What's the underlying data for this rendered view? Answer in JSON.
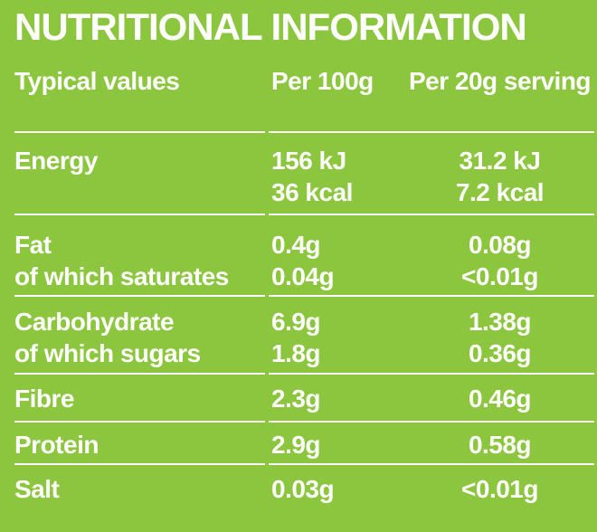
{
  "colors": {
    "background": "#8CC63F",
    "text": "#FFFFFF",
    "divider": "#FFFFFF"
  },
  "title": "NUTRITIONAL INFORMATION",
  "table": {
    "headers": {
      "col1": "Typical values",
      "col2": "Per 100g",
      "col3": "Per 20g serving"
    },
    "rows": [
      {
        "label": "Energy",
        "per100": [
          "156 kJ",
          "36 kcal"
        ],
        "per20": [
          "31.2 kJ",
          "7.2 kcal"
        ]
      },
      {
        "label": "Fat",
        "sublabel": "of which saturates",
        "per100": [
          "0.4g",
          "0.04g"
        ],
        "per20": [
          "0.08g",
          "<0.01g"
        ]
      },
      {
        "label": "Carbohydrate",
        "sublabel": "of which sugars",
        "per100": [
          "6.9g",
          "1.8g"
        ],
        "per20": [
          "1.38g",
          "0.36g"
        ]
      },
      {
        "label": "Fibre",
        "per100": [
          "2.3g"
        ],
        "per20": [
          "0.46g"
        ]
      },
      {
        "label": "Protein",
        "per100": [
          "2.9g"
        ],
        "per20": [
          "0.58g"
        ]
      },
      {
        "label": "Salt",
        "per100": [
          "0.03g"
        ],
        "per20": [
          "<0.01g"
        ]
      }
    ]
  }
}
